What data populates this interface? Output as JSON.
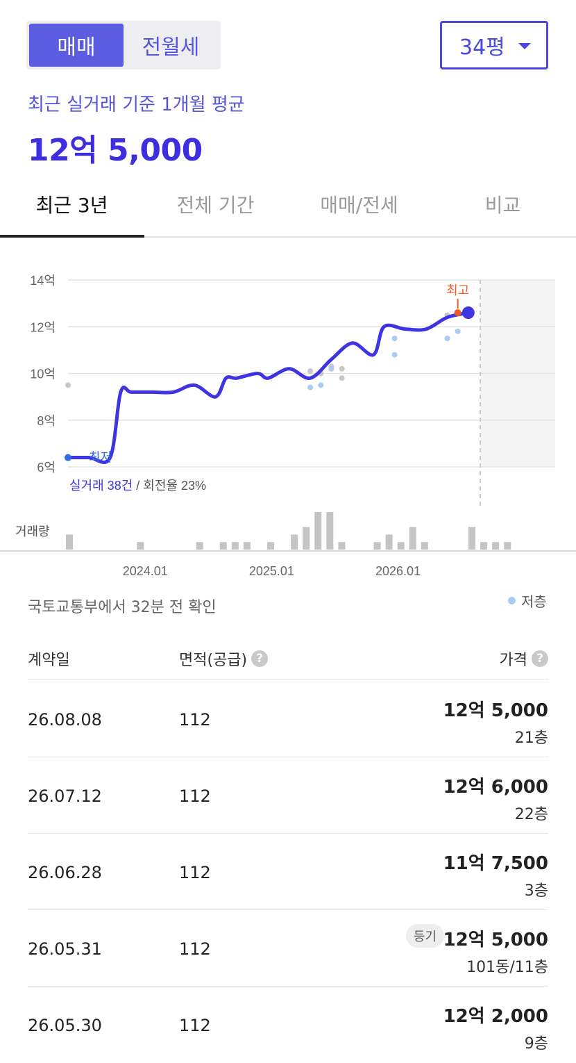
{
  "toggle": {
    "active": "매매",
    "inactive": "전월세"
  },
  "size_select": {
    "value": "34평"
  },
  "summary": {
    "label": "최근 실거래 기준 1개월 평균",
    "value": "12억 5,000"
  },
  "tabs": [
    {
      "label": "최근 3년",
      "active": true
    },
    {
      "label": "전체 기간",
      "active": false
    },
    {
      "label": "매매/전세",
      "active": false
    },
    {
      "label": "비교",
      "active": false
    }
  ],
  "chart_data": {
    "type": "line",
    "y_ticks": [
      "14억",
      "12억",
      "10억",
      "8억",
      "6억"
    ],
    "ylim": [
      6,
      14
    ],
    "x_ticks": [
      "2024.01",
      "2025.01",
      "2026.01"
    ],
    "line_x": [
      "2023.06",
      "2023.08",
      "2023.10",
      "2023.11",
      "2023.12",
      "2024.02",
      "2024.04",
      "2024.06",
      "2024.08",
      "2024.09",
      "2024.10",
      "2024.12",
      "2025.01",
      "2025.03",
      "2025.05",
      "2025.07",
      "2025.09",
      "2025.11",
      "2025.12",
      "2026.02",
      "2026.04",
      "2026.06",
      "2026.08"
    ],
    "line_y": [
      6.4,
      6.4,
      6.4,
      9.2,
      9.2,
      9.2,
      9.2,
      9.5,
      9.0,
      9.8,
      9.8,
      10.0,
      9.8,
      10.2,
      9.8,
      10.6,
      11.3,
      10.8,
      12.0,
      11.9,
      11.9,
      12.4,
      12.6
    ],
    "scatter_gray": [
      9.5,
      10.1,
      10.0,
      10.3,
      10.2,
      9.8,
      12.5
    ],
    "scatter_low": [
      9.4,
      9.5,
      10.2,
      11.5,
      10.8,
      11.5,
      11.8
    ],
    "max_label": "최고",
    "min_label": "최저",
    "deals_count_label": "실거래 38건",
    "turnover_label": "/ 회전율 23%",
    "volume_label": "거래량",
    "volume": [
      2,
      0,
      0,
      0,
      0,
      0,
      1,
      0,
      0,
      0,
      0,
      1,
      0,
      1,
      1,
      1,
      0,
      1,
      0,
      2,
      3,
      5,
      5,
      1,
      0,
      0,
      1,
      2,
      1,
      3,
      1,
      0,
      0,
      0,
      3,
      1,
      1,
      1
    ],
    "colors": {
      "line": "#3f35e0",
      "max": "#f05a28",
      "min": "#2f6de8",
      "scatter_gray": "#c8c8c8",
      "scatter_low": "#a9ccf2",
      "volume": "#c4c4c4"
    }
  },
  "source_text": "국토교통부에서 32분 전 확인",
  "legend_low": "저층",
  "table": {
    "headers": {
      "date": "계약일",
      "area": "면적(공급)",
      "price": "가격"
    },
    "rows": [
      {
        "date": "26.08.08",
        "area": "112",
        "price": "12억 5,000",
        "floor": "21층",
        "badge": ""
      },
      {
        "date": "26.07.12",
        "area": "112",
        "price": "12억 6,000",
        "floor": "22층",
        "badge": ""
      },
      {
        "date": "26.06.28",
        "area": "112",
        "price": "11억 7,500",
        "floor": "3층",
        "badge": ""
      },
      {
        "date": "26.05.31",
        "area": "112",
        "price": "12억 5,000",
        "floor": "101동/11층",
        "badge": "등기"
      },
      {
        "date": "26.05.30",
        "area": "112",
        "price": "12억 2,000",
        "floor": "9층",
        "badge": ""
      }
    ]
  }
}
